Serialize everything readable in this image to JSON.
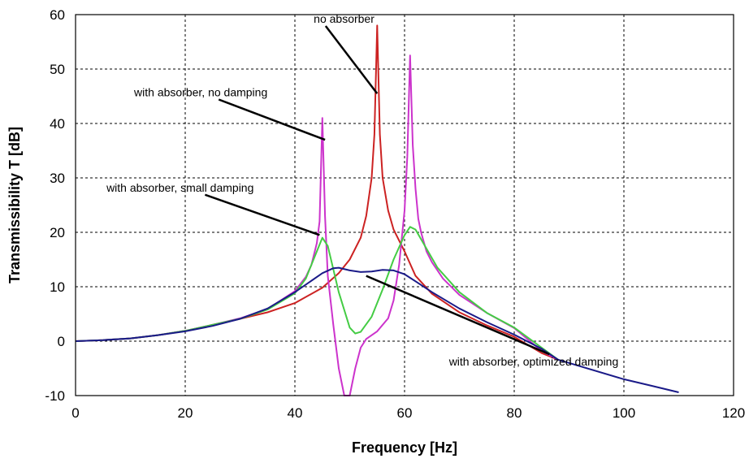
{
  "chart_data": {
    "type": "line",
    "title": "",
    "xlabel": "Frequency [Hz]",
    "ylabel": "Transmissibility T [dB]",
    "xlim": [
      0,
      120
    ],
    "ylim": [
      -10,
      60
    ],
    "xticks": [
      0,
      20,
      40,
      60,
      80,
      100,
      120
    ],
    "yticks": [
      -10,
      0,
      10,
      20,
      30,
      40,
      50,
      60
    ],
    "xtick_labels": [
      "0",
      "20",
      "40",
      "60",
      "80",
      "100",
      "120"
    ],
    "ytick_labels": [
      "-10",
      "0",
      "10",
      "20",
      "30",
      "40",
      "50",
      "60"
    ],
    "grid": true,
    "legend": "none",
    "series": [
      {
        "color": "#cc2222",
        "x": [
          0,
          5,
          10,
          15,
          20,
          25,
          30,
          35,
          40,
          45,
          48,
          50,
          52,
          53,
          54,
          54.5,
          55,
          55.5,
          56,
          57,
          58,
          60,
          62,
          65,
          70,
          75,
          80,
          85,
          88
        ],
        "y": [
          0,
          0.2,
          0.5,
          1.1,
          1.9,
          3.0,
          4.1,
          5.3,
          7.0,
          9.8,
          12.5,
          15,
          19,
          23,
          30,
          38,
          58,
          38,
          30,
          24,
          20.5,
          16.5,
          12,
          8.7,
          5.3,
          2.9,
          0.8,
          -2.2,
          -3.4
        ]
      },
      {
        "color": "#cc33cc",
        "x": [
          0,
          5,
          10,
          15,
          20,
          25,
          30,
          35,
          40,
          42,
          43,
          44,
          44.5,
          45,
          45.5,
          46,
          47,
          48,
          49,
          50,
          51,
          52,
          53,
          55,
          57,
          58,
          59,
          60,
          60.5,
          61,
          61.5,
          62,
          62.5,
          63,
          64,
          65,
          67,
          70,
          75,
          80,
          85,
          88
        ],
        "y": [
          0,
          0.2,
          0.5,
          1.1,
          1.9,
          3.0,
          4.2,
          5.9,
          9.2,
          11.8,
          14,
          18,
          22,
          41,
          23,
          12,
          3,
          -5,
          -10,
          -10,
          -5,
          -1.2,
          0.4,
          1.8,
          4.2,
          7.5,
          14,
          24,
          34,
          52.5,
          36,
          28,
          22.5,
          20,
          16.5,
          14.5,
          11.5,
          8.5,
          5.2,
          2.4,
          -1.8,
          -3.4
        ]
      },
      {
        "color": "#44cc44",
        "x": [
          0,
          5,
          10,
          15,
          20,
          25,
          30,
          35,
          40,
          42,
          44,
          45,
          46,
          48,
          50,
          51,
          52,
          54,
          56,
          58,
          60,
          61,
          62,
          64,
          66,
          70,
          75,
          80,
          85,
          88
        ],
        "y": [
          0,
          0.2,
          0.5,
          1.1,
          1.9,
          3.0,
          4.1,
          5.8,
          8.8,
          11.5,
          16.5,
          19,
          17.5,
          9,
          2.5,
          1.4,
          1.7,
          4.5,
          9.5,
          15,
          19.5,
          21,
          20.5,
          17,
          13.5,
          9,
          5.2,
          2.5,
          -1.2,
          -3.4
        ]
      },
      {
        "color": "#1a1a88",
        "x": [
          0,
          5,
          10,
          15,
          20,
          25,
          30,
          35,
          40,
          45,
          47,
          48,
          50,
          52,
          54,
          56,
          58,
          60,
          62,
          65,
          70,
          75,
          80,
          85,
          88,
          100,
          105,
          110
        ],
        "y": [
          0,
          0.2,
          0.5,
          1.1,
          1.8,
          2.8,
          4.1,
          6.0,
          9.0,
          12.5,
          13.4,
          13.5,
          13.0,
          12.7,
          12.8,
          13.1,
          13.0,
          12.3,
          11.0,
          9.0,
          6.0,
          3.5,
          1.2,
          -1.4,
          -3.4,
          -7.0,
          -8.2,
          -9.4
        ]
      }
    ],
    "annotations": [
      {
        "text": "no absorber",
        "x": 54.5,
        "y": 58.5,
        "point_x": 55.0,
        "point_y": 45.5
      },
      {
        "text": "with absorber, no damping",
        "x": 35.0,
        "y": 45.0,
        "point_x": 45.5,
        "point_y": 37.0
      },
      {
        "text": "with absorber, small damping",
        "x": 32.5,
        "y": 27.5,
        "point_x": 44.5,
        "point_y": 19.5
      },
      {
        "text": "with absorber, optimized damping",
        "x": 99.0,
        "y": -4.5,
        "point_x": 53.0,
        "point_y": 12.0
      }
    ]
  }
}
